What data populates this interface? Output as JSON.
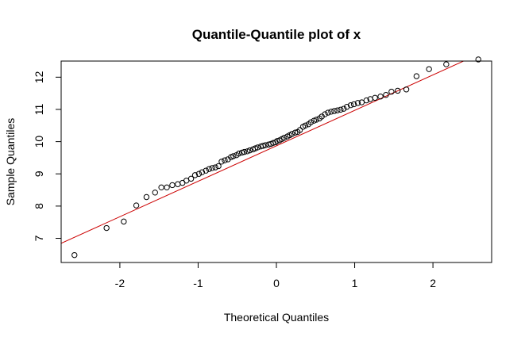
{
  "chart_data": {
    "type": "scatter",
    "title": "Quantile-Quantile plot of x",
    "xlabel": "Theoretical Quantiles",
    "ylabel": "Sample Quantiles",
    "xlim": [
      -2.75,
      2.75
    ],
    "ylim": [
      6.25,
      12.5
    ],
    "x_ticks": [
      -2,
      -1,
      0,
      1,
      2
    ],
    "x_tick_labels": [
      "-2",
      "-1",
      "0",
      "1",
      "2"
    ],
    "y_ticks": [
      7,
      8,
      9,
      10,
      11,
      12
    ],
    "y_tick_labels": [
      "7",
      "8",
      "9",
      "10",
      "11",
      "12"
    ],
    "grid": false,
    "legend": "none",
    "colors": {
      "points": "#000000",
      "reference_line": "#cc0000",
      "frame": "#000000"
    },
    "reference_line": {
      "intercept": 9.87,
      "slope": 1.1
    },
    "points": {
      "x": [
        -2.58,
        -2.17,
        -1.95,
        -1.79,
        -1.66,
        -1.55,
        -1.47,
        -1.4,
        -1.33,
        -1.26,
        -1.2,
        -1.15,
        -1.09,
        -1.04,
        -0.99,
        -0.95,
        -0.9,
        -0.86,
        -0.82,
        -0.78,
        -0.74,
        -0.7,
        -0.66,
        -0.62,
        -0.58,
        -0.55,
        -0.51,
        -0.48,
        -0.44,
        -0.41,
        -0.37,
        -0.34,
        -0.3,
        -0.27,
        -0.24,
        -0.2,
        -0.17,
        -0.14,
        -0.1,
        -0.07,
        -0.04,
        -0.01,
        0.01,
        0.04,
        0.07,
        0.1,
        0.14,
        0.17,
        0.2,
        0.24,
        0.27,
        0.3,
        0.34,
        0.37,
        0.41,
        0.44,
        0.48,
        0.51,
        0.55,
        0.58,
        0.62,
        0.66,
        0.7,
        0.74,
        0.78,
        0.82,
        0.86,
        0.9,
        0.95,
        0.99,
        1.04,
        1.09,
        1.15,
        1.2,
        1.26,
        1.33,
        1.4,
        1.47,
        1.55,
        1.66,
        1.79,
        1.95,
        2.17,
        2.58
      ],
      "y": [
        6.48,
        7.32,
        7.52,
        8.02,
        8.28,
        8.42,
        8.58,
        8.58,
        8.65,
        8.68,
        8.72,
        8.79,
        8.85,
        8.96,
        9.0,
        9.05,
        9.1,
        9.15,
        9.18,
        9.2,
        9.24,
        9.38,
        9.42,
        9.45,
        9.52,
        9.55,
        9.58,
        9.63,
        9.66,
        9.68,
        9.7,
        9.73,
        9.76,
        9.79,
        9.82,
        9.85,
        9.87,
        9.89,
        9.91,
        9.93,
        9.96,
        9.98,
        10.02,
        10.04,
        10.08,
        10.12,
        10.16,
        10.2,
        10.24,
        10.28,
        10.3,
        10.36,
        10.46,
        10.5,
        10.54,
        10.6,
        10.65,
        10.68,
        10.72,
        10.78,
        10.85,
        10.9,
        10.93,
        10.95,
        10.97,
        10.99,
        11.02,
        11.08,
        11.13,
        11.16,
        11.2,
        11.22,
        11.28,
        11.32,
        11.36,
        11.4,
        11.45,
        11.55,
        11.58,
        11.62,
        12.03,
        12.25,
        12.4,
        12.55
      ]
    }
  }
}
